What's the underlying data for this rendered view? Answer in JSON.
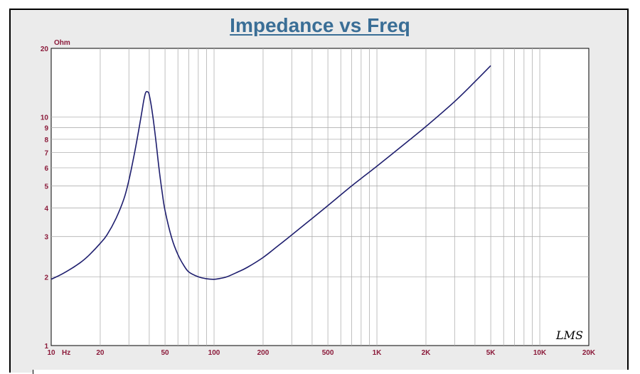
{
  "colors": {
    "title": "#3a6e96",
    "axis_text": "#8b1a3a",
    "curve": "#1e1e6e",
    "grid": "#b0b0b0",
    "background": "#ebebeb",
    "plot_background": "#ffffff"
  },
  "logo_text": "LMS",
  "chart_data": {
    "type": "line",
    "title": "Impedance vs Freq",
    "xlabel": "Hz",
    "ylabel": "Ohm",
    "xscale": "log",
    "yscale": "log",
    "xlim": [
      10,
      20000
    ],
    "ylim": [
      1,
      20
    ],
    "grid": true,
    "x_tick_labels": [
      {
        "value": 10,
        "label": "10"
      },
      {
        "value": 20,
        "label": "20"
      },
      {
        "value": 50,
        "label": "50"
      },
      {
        "value": 100,
        "label": "100"
      },
      {
        "value": 200,
        "label": "200"
      },
      {
        "value": 500,
        "label": "500"
      },
      {
        "value": 1000,
        "label": "1K"
      },
      {
        "value": 2000,
        "label": "2K"
      },
      {
        "value": 5000,
        "label": "5K"
      },
      {
        "value": 10000,
        "label": "10K"
      },
      {
        "value": 20000,
        "label": "20K"
      }
    ],
    "y_tick_labels": [
      {
        "value": 1,
        "label": "1"
      },
      {
        "value": 2,
        "label": "2"
      },
      {
        "value": 3,
        "label": "3"
      },
      {
        "value": 4,
        "label": "4"
      },
      {
        "value": 5,
        "label": "5"
      },
      {
        "value": 6,
        "label": "6"
      },
      {
        "value": 7,
        "label": "7"
      },
      {
        "value": 8,
        "label": "8"
      },
      {
        "value": 9,
        "label": "9"
      },
      {
        "value": 10,
        "label": "10"
      },
      {
        "value": 20,
        "label": "20"
      }
    ],
    "series": [
      {
        "x": [
          10,
          12,
          15,
          17,
          20,
          22,
          25,
          28,
          30,
          32,
          34,
          36,
          37,
          38,
          39,
          40,
          42,
          44,
          46,
          48,
          50,
          55,
          60,
          65,
          70,
          80,
          90,
          100,
          110,
          120,
          140,
          160,
          200,
          250,
          300,
          400,
          500,
          700,
          1000,
          1500,
          2000,
          3000,
          4000,
          5000
        ],
        "y": [
          1.95,
          2.08,
          2.3,
          2.48,
          2.8,
          3.05,
          3.6,
          4.4,
          5.3,
          6.6,
          8.3,
          10.5,
          11.8,
          12.8,
          12.9,
          12.5,
          10.2,
          7.8,
          5.9,
          4.7,
          3.9,
          2.95,
          2.5,
          2.25,
          2.1,
          2.0,
          1.96,
          1.95,
          1.97,
          2.0,
          2.1,
          2.2,
          2.43,
          2.75,
          3.05,
          3.6,
          4.1,
          5.0,
          6.1,
          7.7,
          9.1,
          11.7,
          14.3,
          16.8
        ]
      }
    ]
  }
}
